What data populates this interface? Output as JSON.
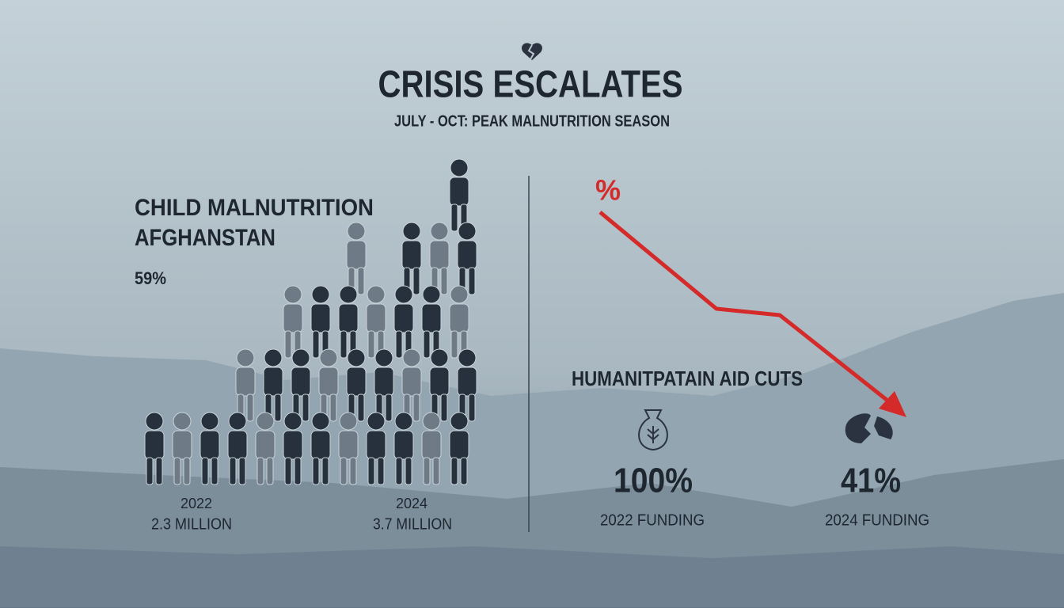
{
  "header": {
    "title": "CRISIS ESCALATES",
    "subtitle": "JULY - OCT: PEAK MALNUTRITION SEASON"
  },
  "malnutrition": {
    "heading": [
      "CHILD MALNUTRITION",
      "AFGHANSTAN"
    ],
    "rate": "59%",
    "years": [
      {
        "year": "2022",
        "count": "2.3 MILLION"
      },
      {
        "year": "2024",
        "count": "3.7 MILLION"
      }
    ]
  },
  "aid": {
    "symbol": "%",
    "heading": "HUMANITPATAIN AID CUTS",
    "items": [
      {
        "value": "100%",
        "label": "2022 FUNDING"
      },
      {
        "value": "41%",
        "label": "2024 FUNDING"
      }
    ]
  }
}
